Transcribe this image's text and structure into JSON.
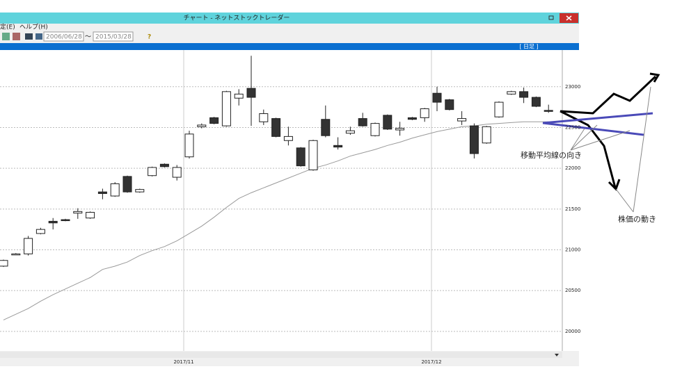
{
  "window": {
    "title": "チャート - ネットストックトレーダー"
  },
  "menu": [
    "定(E)",
    "ヘルプ(H)"
  ],
  "toolbar": {
    "from": "2006/06/28",
    "sep": "～",
    "to": "2015/03/28",
    "help": "?"
  },
  "panel": {
    "label": "[ 日足 ]"
  },
  "chart_data": {
    "type": "candlestick",
    "ylim": [
      19760,
      23450
    ],
    "yticks": [
      20000,
      20500,
      21000,
      21500,
      22000,
      22500,
      23000
    ],
    "x_labels": [
      "2017/11",
      "2017/12"
    ],
    "open": [
      20800,
      20950,
      20950,
      21200,
      21350,
      21370,
      21450,
      21390,
      21710,
      21660,
      21900,
      21710,
      21910,
      22050,
      21890,
      22140,
      22510,
      22620,
      22520,
      22860,
      22980,
      22570,
      22610,
      22340,
      22250,
      21980,
      22600,
      22280,
      22430,
      22610,
      22400,
      22650,
      22470,
      22620,
      22620,
      22920,
      22840,
      22580,
      22520,
      22310,
      22630,
      22910,
      22940,
      22870,
      22710
    ],
    "high": [
      20880,
      20960,
      21170,
      21270,
      21390,
      21380,
      21510,
      21470,
      21750,
      21830,
      21910,
      21750,
      22020,
      22060,
      22040,
      22460,
      22550,
      22630,
      22950,
      22970,
      23380,
      22720,
      22620,
      22510,
      22260,
      22350,
      22770,
      22380,
      22510,
      22680,
      22560,
      22660,
      22570,
      22630,
      22740,
      23000,
      22850,
      22700,
      22550,
      22520,
      22820,
      22950,
      22990,
      22880,
      22780
    ],
    "low": [
      20790,
      20940,
      20930,
      21190,
      21250,
      21350,
      21380,
      21380,
      21620,
      21650,
      21700,
      21700,
      21900,
      22010,
      21850,
      22120,
      22490,
      22540,
      22510,
      22770,
      22520,
      22530,
      22380,
      22280,
      22020,
      21970,
      22380,
      22230,
      22410,
      22510,
      22390,
      22470,
      22400,
      22590,
      22570,
      22700,
      22710,
      22530,
      22120,
      22300,
      22620,
      22900,
      22800,
      22750,
      22680
    ],
    "close": [
      20870,
      20950,
      21140,
      21250,
      21330,
      21360,
      21470,
      21460,
      21690,
      21810,
      21710,
      21740,
      22010,
      22020,
      22010,
      22420,
      22530,
      22550,
      22940,
      22910,
      22870,
      22670,
      22390,
      22390,
      22030,
      22340,
      22400,
      22260,
      22460,
      22520,
      22550,
      22480,
      22490,
      22600,
      22730,
      22810,
      22720,
      22610,
      22180,
      22510,
      22810,
      22940,
      22870,
      22760,
      22700
    ],
    "moving_average": [
      20140,
      20210,
      20280,
      20370,
      20450,
      20520,
      20590,
      20660,
      20760,
      20800,
      20850,
      20930,
      20990,
      21040,
      21110,
      21200,
      21290,
      21400,
      21520,
      21630,
      21700,
      21760,
      21820,
      21880,
      21940,
      22000,
      22040,
      22090,
      22150,
      22190,
      22230,
      22280,
      22320,
      22370,
      22410,
      22450,
      22480,
      22510,
      22520,
      22540,
      22550,
      22560,
      22570,
      22570,
      22570
    ],
    "up_color": "#ffffff",
    "down_color": "#333333",
    "ma_color": "#999999"
  },
  "annotations": {
    "trend": "移動平均線の向き",
    "price": "株価の動き"
  }
}
